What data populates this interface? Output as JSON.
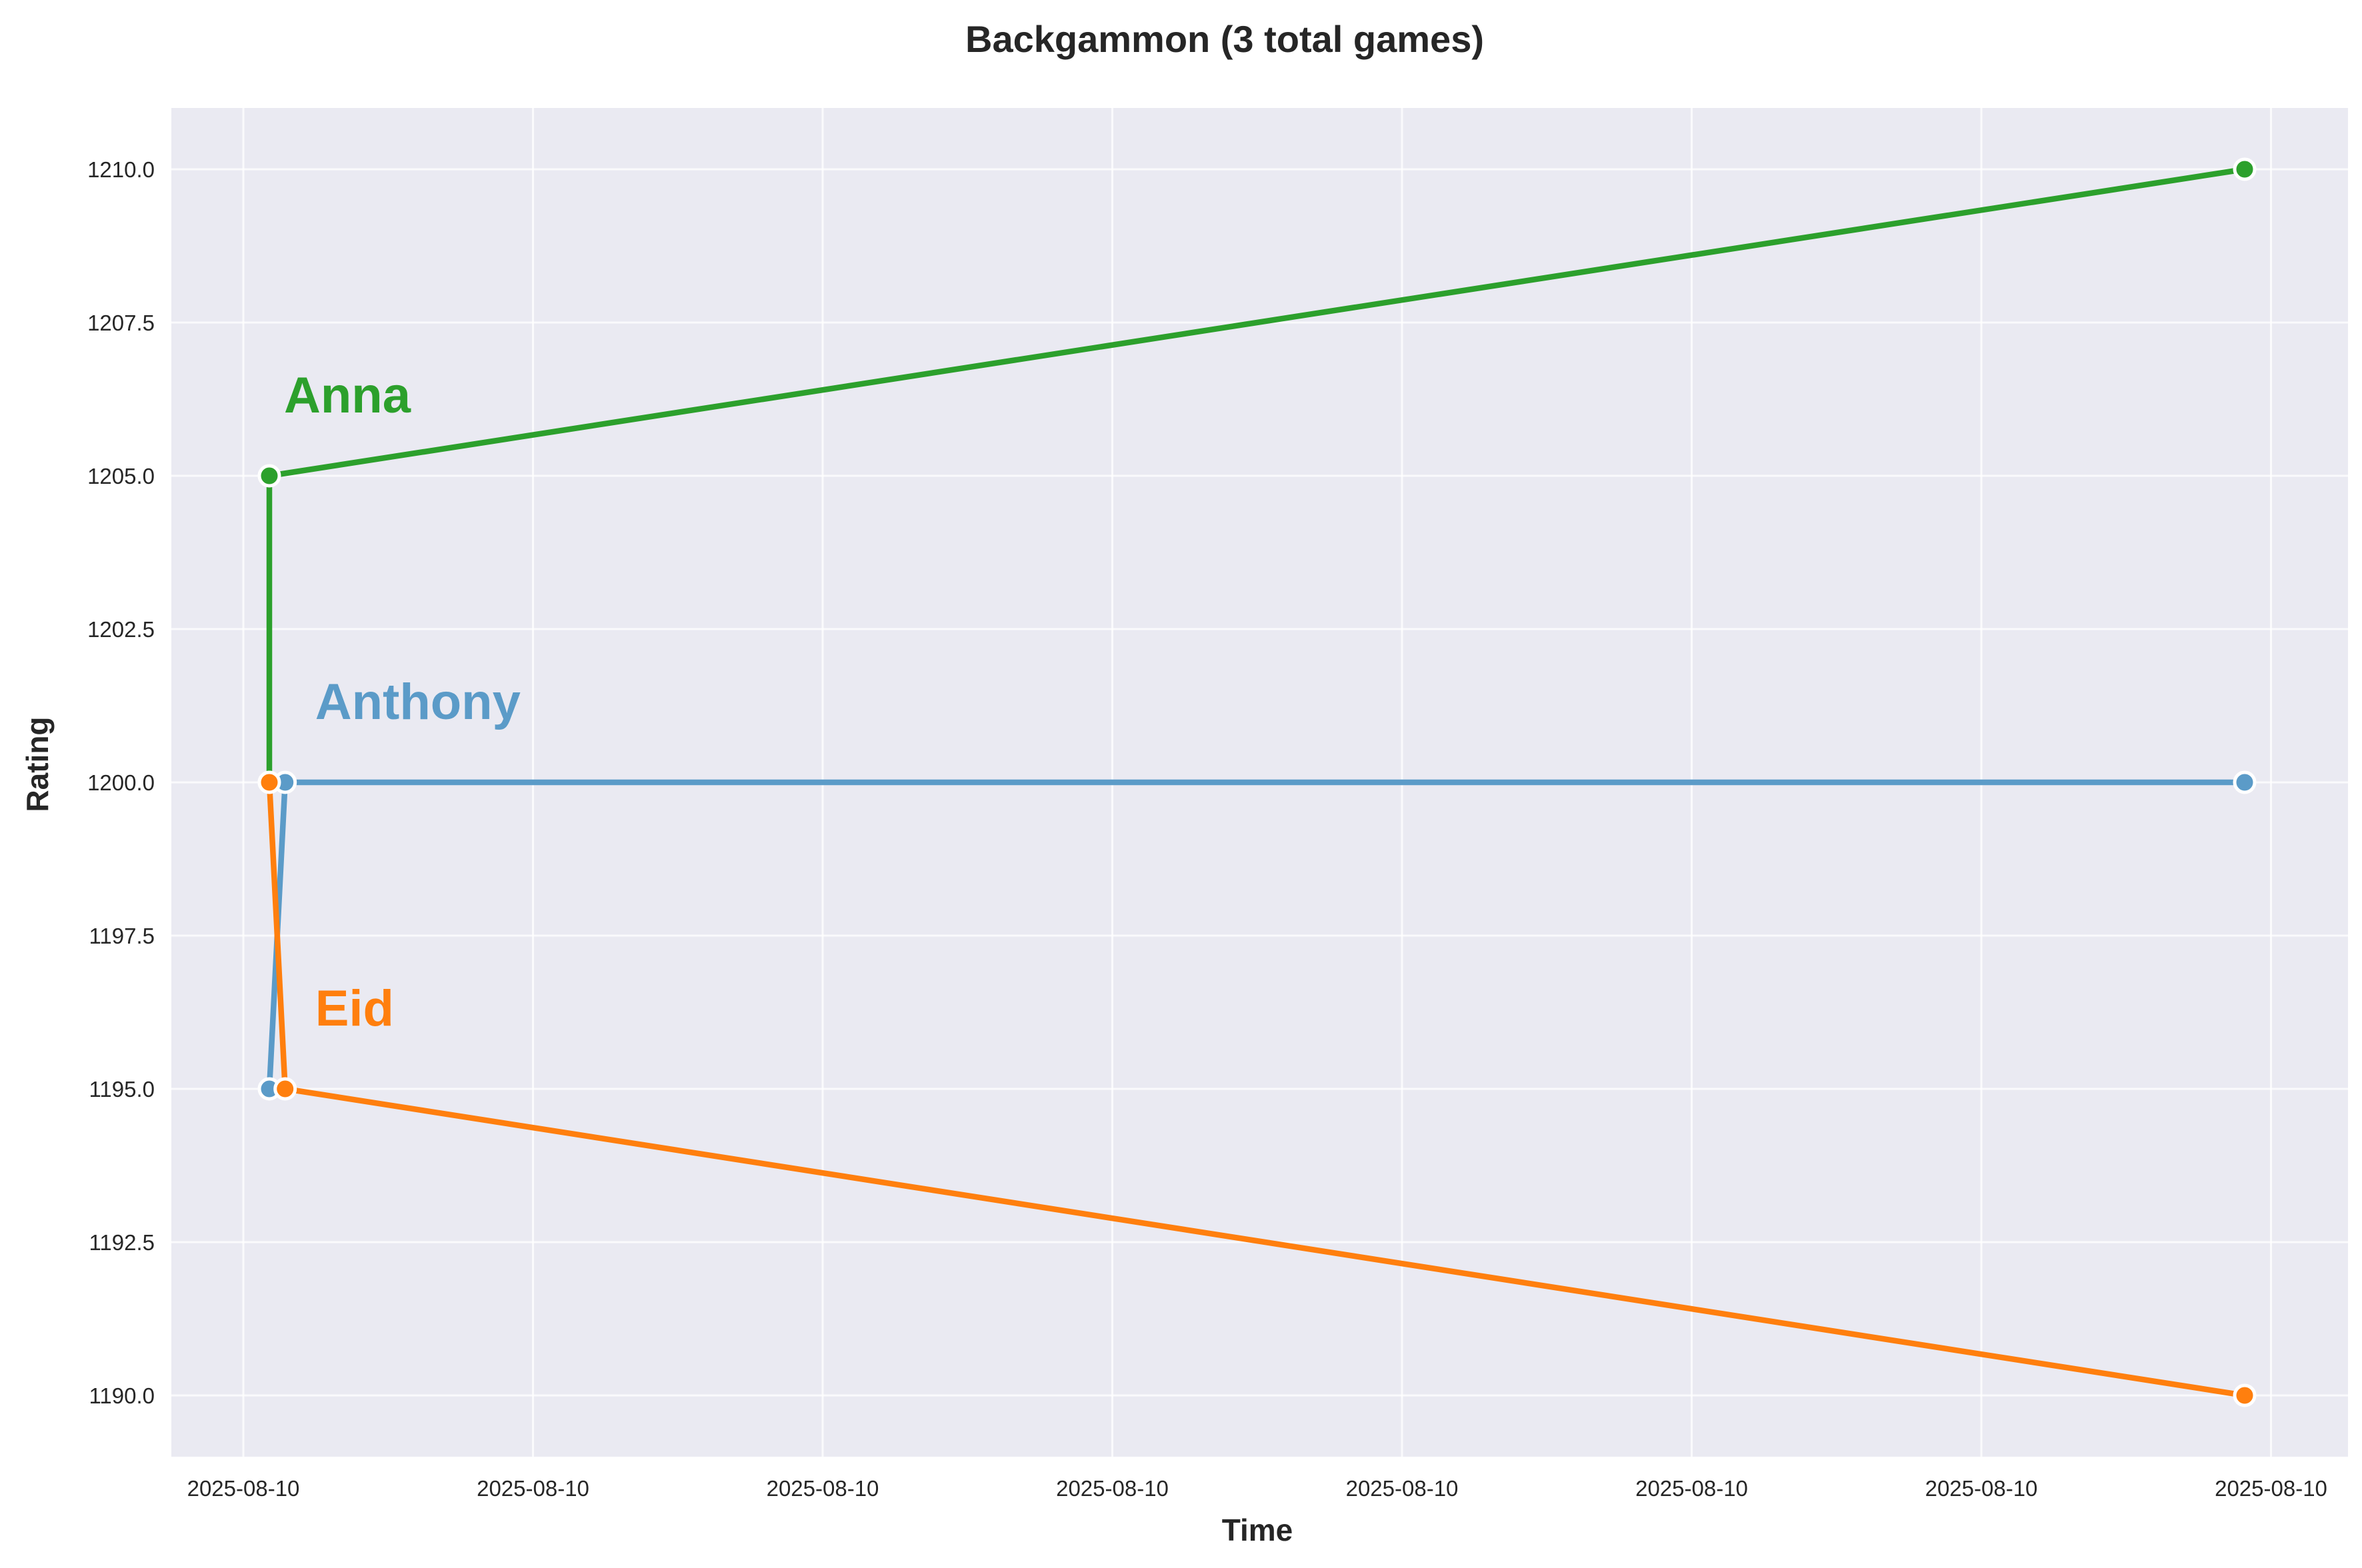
{
  "chart_data": {
    "type": "line",
    "title": "Backgammon (3 total games)",
    "xlabel": "Time",
    "ylabel": "Rating",
    "x_tick_labels": [
      "2025-08-10",
      "2025-08-10",
      "2025-08-10",
      "2025-08-10",
      "2025-08-10",
      "2025-08-10",
      "2025-08-10",
      "2025-08-10"
    ],
    "y_ticks": [
      1190.0,
      1192.5,
      1195.0,
      1197.5,
      1200.0,
      1202.5,
      1205.0,
      1207.5,
      1210.0
    ],
    "y_tick_labels": [
      "1190.0",
      "1192.5",
      "1195.0",
      "1197.5",
      "1200.0",
      "1202.5",
      "1205.0",
      "1207.5",
      "1210.0"
    ],
    "ylim": [
      1189.0,
      1211.0
    ],
    "grid": true,
    "series": [
      {
        "name": "Anna",
        "color": "#2ca02c",
        "points": [
          [
            0.0,
            1200.0
          ],
          [
            0.0,
            1205.0
          ],
          [
            1.0,
            1210.0
          ]
        ]
      },
      {
        "name": "Anthony",
        "color": "#5b9bc8",
        "points": [
          [
            0.0,
            1195.0
          ],
          [
            0.008,
            1200.0
          ],
          [
            1.0,
            1200.0
          ]
        ]
      },
      {
        "name": "Eid",
        "color": "#ff7f0e",
        "points": [
          [
            0.0,
            1200.0
          ],
          [
            0.008,
            1195.0
          ],
          [
            1.0,
            1190.0
          ]
        ]
      }
    ]
  }
}
